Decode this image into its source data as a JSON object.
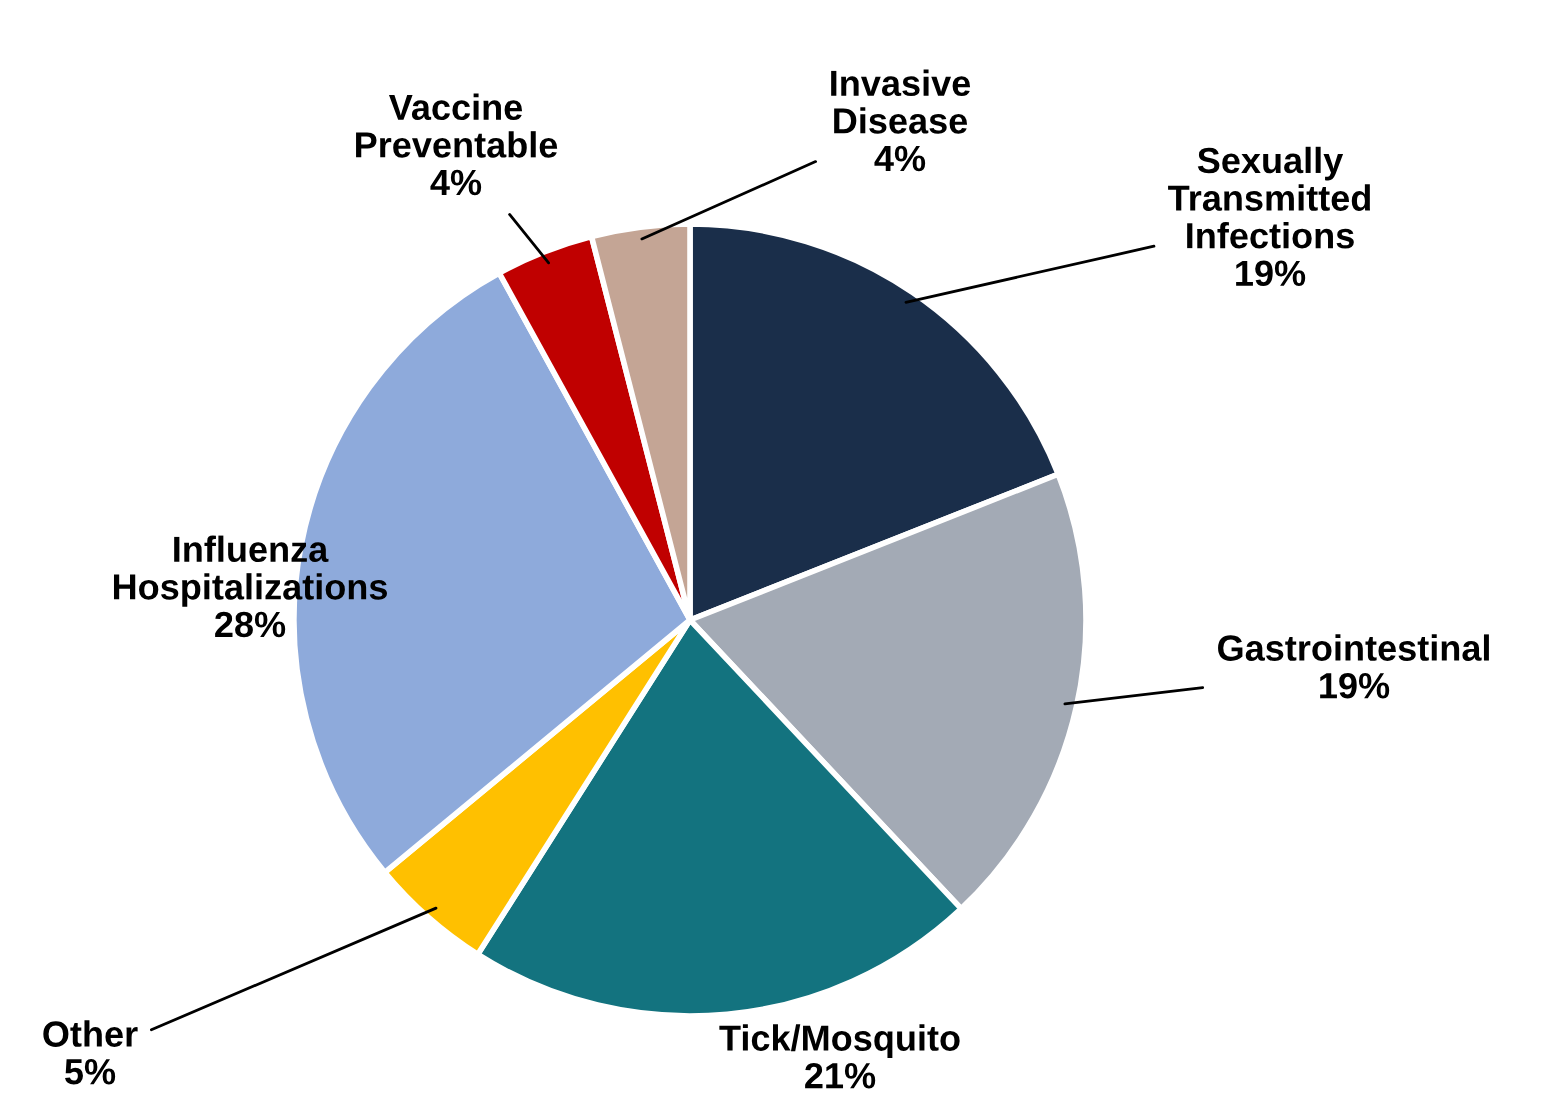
{
  "chart_data": {
    "type": "pie",
    "categories": [
      "Sexually\nTransmitted\nInfections",
      "Gastrointestinal",
      "Tick/Mosquito",
      "Other",
      "Influenza\nHospitalizations",
      "Vaccine\nPreventable",
      "Invasive\nDisease"
    ],
    "values": [
      19,
      19,
      21,
      5,
      28,
      4,
      4
    ],
    "value_labels": [
      "19%",
      "19%",
      "21%",
      "5%",
      "28%",
      "4%",
      "4%"
    ],
    "colors": [
      "#1a2e4a",
      "#a3aab5",
      "#13737f",
      "#ffc000",
      "#8eaadb",
      "#c00000",
      "#c4a595"
    ],
    "legend": false
  }
}
